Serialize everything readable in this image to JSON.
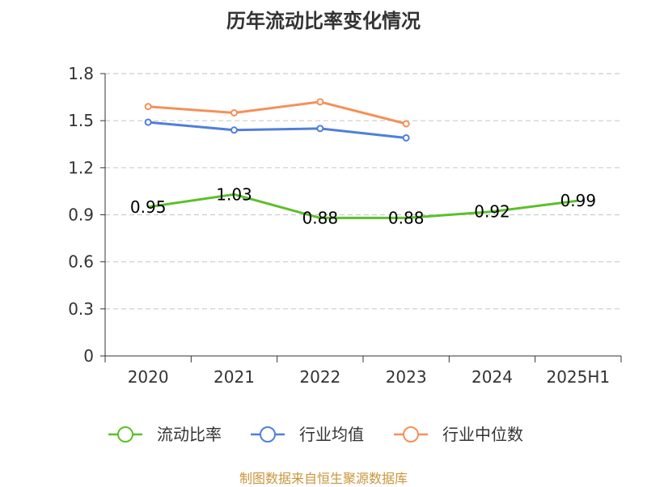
{
  "title": "历年流动比率变化情况",
  "source": "制图数据来自恒生聚源数据库",
  "chart_data": {
    "type": "line",
    "title": "历年流动比率变化情况",
    "categories": [
      "2020",
      "2021",
      "2022",
      "2023",
      "2024",
      "2025H1"
    ],
    "ylim": [
      0,
      1.8
    ],
    "yticks": [
      "0",
      "0.3",
      "0.6",
      "0.9",
      "1.2",
      "1.5",
      "1.8"
    ],
    "grid": true,
    "legend_position": "bottom",
    "series": [
      {
        "name": "流动比率",
        "color": "#5cbf2a",
        "values": [
          0.95,
          1.03,
          0.88,
          0.88,
          0.92,
          0.99
        ],
        "labels": [
          "0.95",
          "1.03",
          "0.88",
          "0.88",
          "0.92",
          "0.99"
        ]
      },
      {
        "name": "行业均值",
        "color": "#4f7fdc",
        "values": [
          1.49,
          1.44,
          1.45,
          1.39,
          null,
          null
        ]
      },
      {
        "name": "行业中位数",
        "color": "#f5905a",
        "values": [
          1.59,
          1.55,
          1.62,
          1.48,
          null,
          null
        ]
      }
    ]
  }
}
